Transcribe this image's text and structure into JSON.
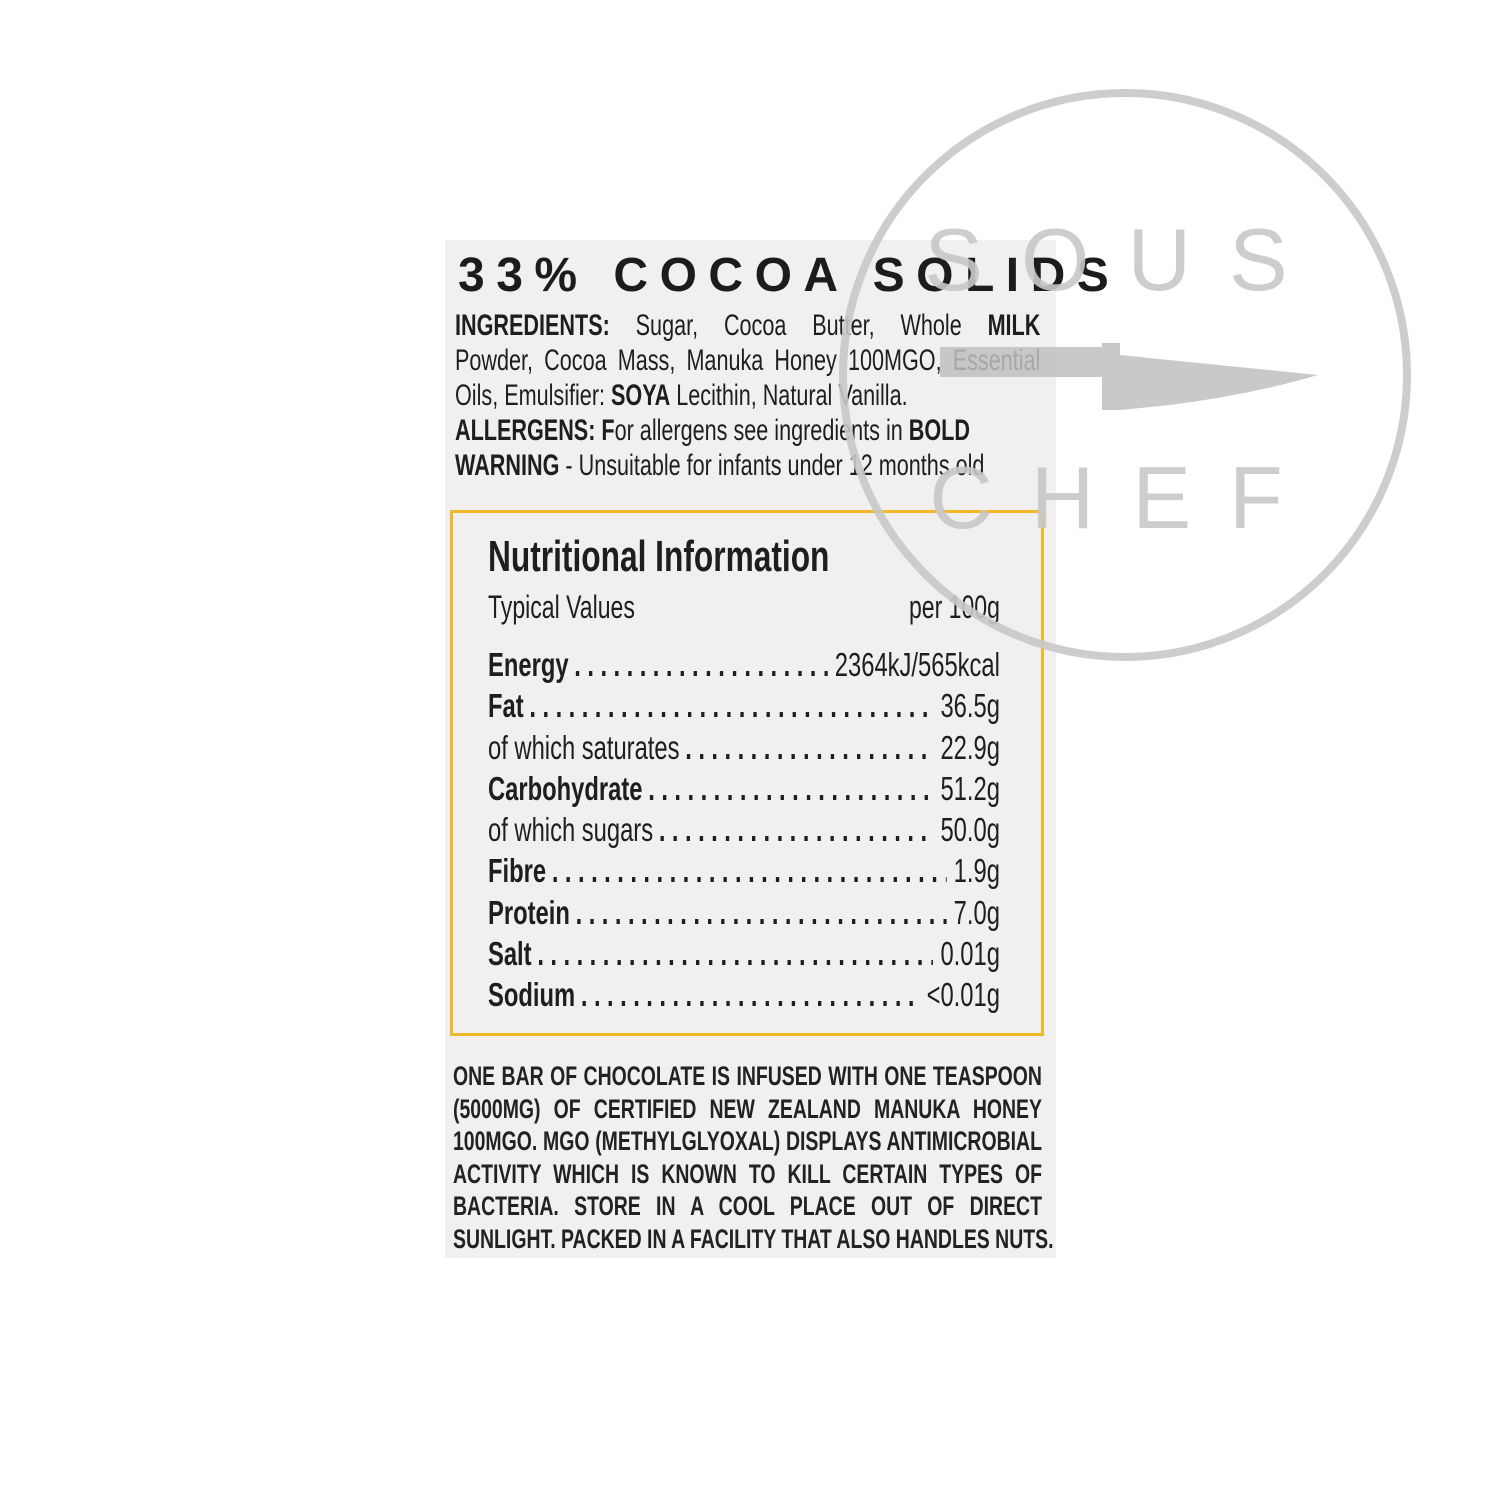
{
  "header": {
    "title": "33% COCOA SOLIDS"
  },
  "ingredients": {
    "lines": [
      [
        {
          "t": "INGREDIENTS:",
          "b": true
        },
        {
          "t": " Sugar, Cocoa Butter, Whole ",
          "b": false
        },
        {
          "t": "MILK",
          "b": true
        }
      ],
      [
        {
          "t": "Powder, Cocoa Mass, Manuka Honey 100MGO, Essential",
          "b": false
        }
      ],
      [
        {
          "t": "Oils, Emulsifier: ",
          "b": false
        },
        {
          "t": "SOYA",
          "b": true
        },
        {
          "t": " Lecithin, Natural Vanilla.",
          "b": false
        }
      ],
      [
        {
          "t": "ALLERGENS: F",
          "b": true
        },
        {
          "t": "or allergens see ingredients in ",
          "b": false
        },
        {
          "t": "BOLD",
          "b": true
        }
      ],
      [
        {
          "t": "WARNING",
          "b": true
        },
        {
          "t": " - Unsuitable for infants under 12 months old",
          "b": false
        }
      ]
    ]
  },
  "nutrition": {
    "title": "Nutritional Information",
    "typical_values_label": "Typical Values",
    "per_label": "per 100g",
    "border_color": "#f0b92a",
    "rows": [
      {
        "label": "Energy",
        "value": "2364kJ/565kcal",
        "bold": true
      },
      {
        "label": "Fat",
        "value": "36.5g",
        "bold": true
      },
      {
        "label": "of which saturates",
        "value": "22.9g",
        "bold": false
      },
      {
        "label": "Carbohydrate",
        "value": "51.2g",
        "bold": true
      },
      {
        "label": "of which sugars",
        "value": "50.0g",
        "bold": false
      },
      {
        "label": "Fibre",
        "value": "1.9g",
        "bold": true
      },
      {
        "label": "Protein",
        "value": "7.0g",
        "bold": true
      },
      {
        "label": "Salt",
        "value": "0.01g",
        "bold": true
      },
      {
        "label": "Sodium",
        "value": "<0.01g",
        "bold": true
      }
    ]
  },
  "footer": {
    "lines": [
      "ONE BAR OF CHOCOLATE IS INFUSED WITH ONE TEASPOON",
      "(5000MG) OF CERTIFIED NEW ZEALAND MANUKA HONEY",
      "100MGO. MGO (METHYLGLYOXAL) DISPLAYS ANTIMICROBIAL",
      "ACTIVITY WHICH IS KNOWN TO KILL CERTAIN TYPES OF",
      "BACTERIA. STORE IN A COOL PLACE OUT OF DIRECT",
      "SUNLIGHT. PACKED IN A FACILITY THAT ALSO HANDLES NUTS."
    ]
  },
  "watermark": {
    "line1": "SOUS",
    "line2": "CHEF",
    "icon": "knife-icon",
    "color": "#c8c8c8"
  }
}
